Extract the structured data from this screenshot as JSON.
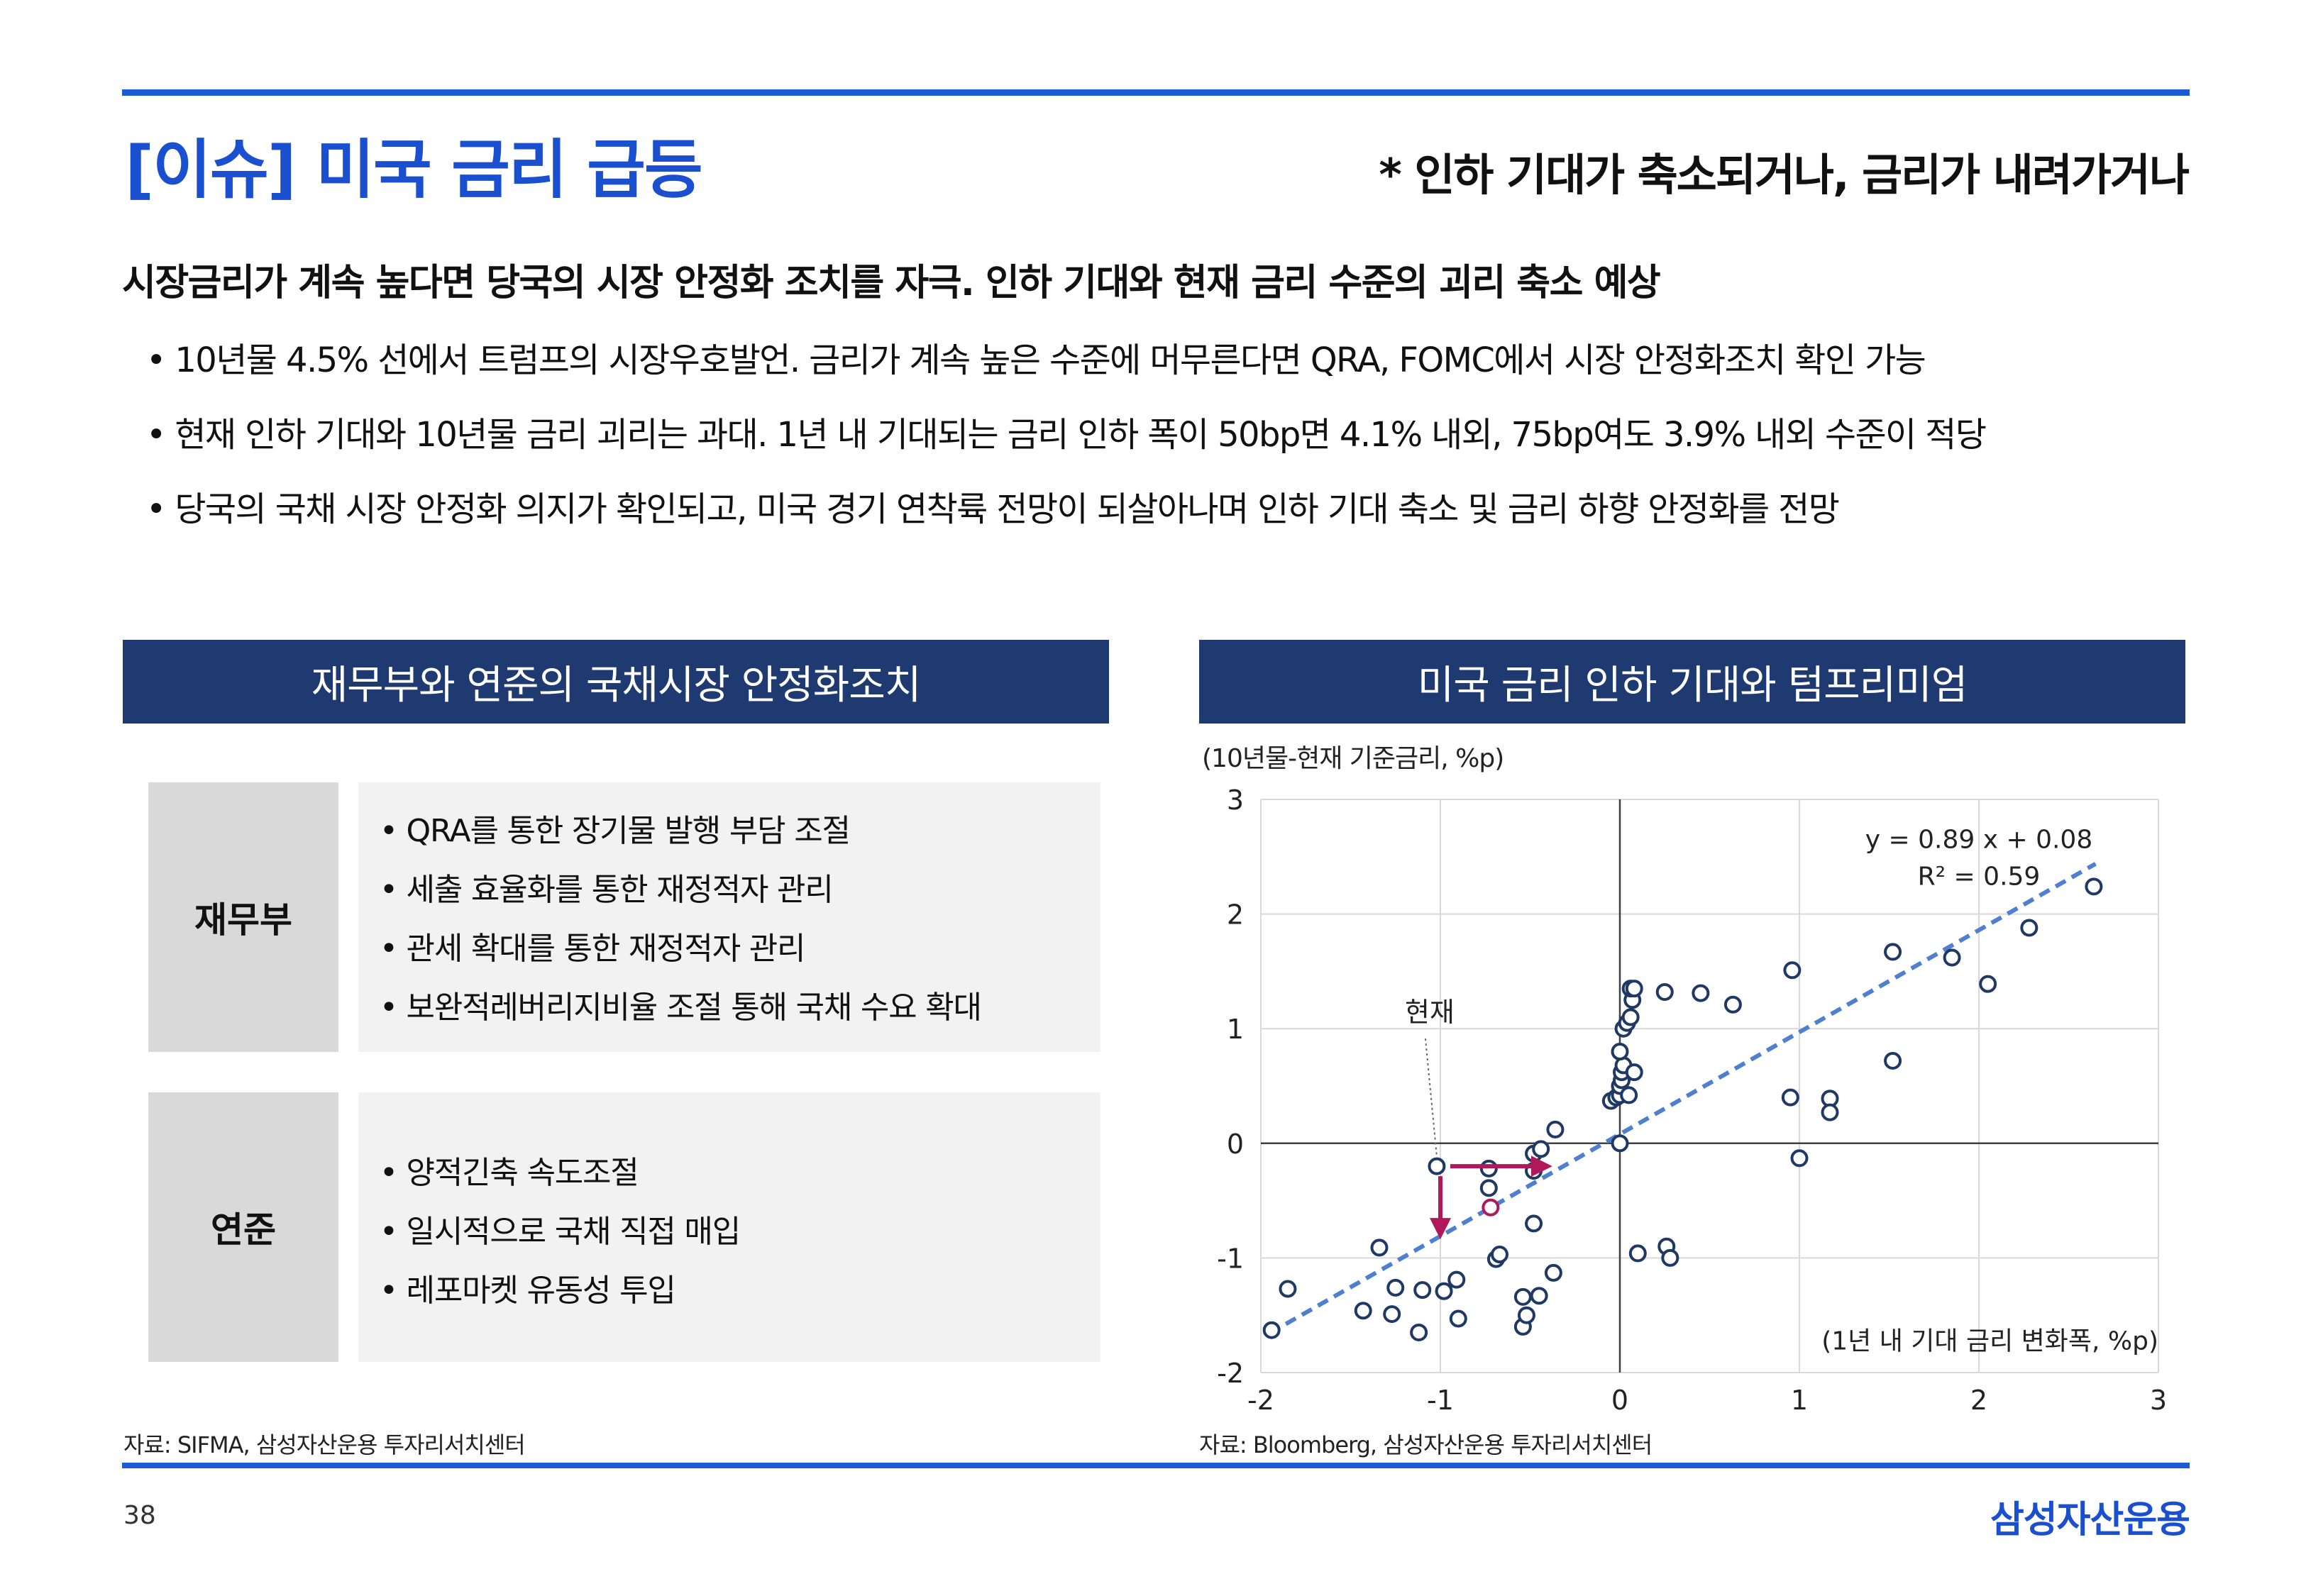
{
  "header": {
    "title": "[이슈] 미국 금리 급등",
    "subtitle": "* 인하 기대가 축소되거나, 금리가 내려가거나"
  },
  "headline": "시장금리가 계속 높다면 당국의 시장 안정화 조치를 자극. 인하 기대와 현재 금리 수준의 괴리 축소 예상",
  "bullets": [
    "• 10년물 4.5% 선에서 트럼프의 시장우호발언. 금리가 계속 높은 수준에 머무른다면 QRA, FOMC에서 시장 안정화조치 확인 가능",
    "• 현재 인하 기대와 10년물 금리 괴리는 과대. 1년 내 기대되는 금리 인하 폭이 50bp면 4.1% 내외, 75bp여도 3.9% 내외 수준이 적당",
    "• 당국의 국채 시장 안정화 의지가 확인되고, 미국 경기 연착륙 전망이 되살아나며 인하 기대 축소 및 금리 하향 안정화를 전망"
  ],
  "left_panel": {
    "title": "재무부와 연준의 국채시장 안정화조치",
    "rows": [
      {
        "label": "재무부",
        "items": [
          "• QRA를 통한 장기물 발행 부담 조절",
          "• 세출 효율화를 통한 재정적자 관리",
          "• 관세 확대를 통한 재정적자 관리",
          "• 보완적레버리지비율 조절 통해 국채 수요 확대"
        ]
      },
      {
        "label": "연준",
        "items": [
          "• 양적긴축 속도조절",
          "• 일시적으로 국채 직접 매입",
          "• 레포마켓 유동성 투입"
        ]
      }
    ],
    "source": "자료: SIFMA, 삼성자산운용 투자리서치센터"
  },
  "right_panel": {
    "title": "미국 금리 인하 기대와 텀프리미엄",
    "source": "자료: Bloomberg, 삼성자산운용 투자리서치센터"
  },
  "chart_data": {
    "type": "scatter",
    "ylabel": "(10년물-현재 기준금리, %p)",
    "xlabel": "(1년 내 기대 금리 변화폭, %p)",
    "xlim": [
      -2,
      3
    ],
    "ylim": [
      -2,
      3
    ],
    "x_ticks": [
      "-2",
      "-1",
      "0",
      "1",
      "2",
      "3"
    ],
    "y_ticks": [
      "3",
      "2",
      "1",
      "0",
      "-1",
      "-2"
    ],
    "grid": true,
    "equation": "y = 0.89 x + 0.08",
    "r_squared": "R² = 0.59",
    "trendline": {
      "slope": 0.89,
      "intercept": 0.08,
      "x_range": [
        -1.95,
        2.65
      ]
    },
    "annotation": {
      "label": "현재",
      "x": -1.02,
      "y": -0.2
    },
    "arrows": [
      {
        "from": [
          -1.0,
          -0.2
        ],
        "to": [
          -0.4,
          -0.2
        ]
      },
      {
        "from": [
          -1.0,
          -0.2
        ],
        "to": [
          -1.0,
          -0.8
        ]
      }
    ],
    "highlight_point": {
      "x": -0.72,
      "y": -0.56
    },
    "points": [
      {
        "x": -1.94,
        "y": -1.63
      },
      {
        "x": -1.85,
        "y": -1.27
      },
      {
        "x": -1.43,
        "y": -1.46
      },
      {
        "x": -1.34,
        "y": -0.91
      },
      {
        "x": -1.27,
        "y": -1.49
      },
      {
        "x": -1.25,
        "y": -1.26
      },
      {
        "x": -1.12,
        "y": -1.65
      },
      {
        "x": -1.1,
        "y": -1.28
      },
      {
        "x": -0.98,
        "y": -1.29
      },
      {
        "x": -0.91,
        "y": -1.19
      },
      {
        "x": -0.9,
        "y": -1.53
      },
      {
        "x": -1.02,
        "y": -0.2
      },
      {
        "x": -0.73,
        "y": -0.22
      },
      {
        "x": -0.73,
        "y": -0.39
      },
      {
        "x": -0.69,
        "y": -1.01
      },
      {
        "x": -0.67,
        "y": -0.97
      },
      {
        "x": -0.54,
        "y": -1.34
      },
      {
        "x": -0.54,
        "y": -1.6
      },
      {
        "x": -0.52,
        "y": -1.5
      },
      {
        "x": -0.48,
        "y": -0.24
      },
      {
        "x": -0.48,
        "y": -0.09
      },
      {
        "x": -0.48,
        "y": -0.7
      },
      {
        "x": -0.45,
        "y": -1.33
      },
      {
        "x": -0.44,
        "y": -0.05
      },
      {
        "x": -0.37,
        "y": -1.13
      },
      {
        "x": -0.36,
        "y": 0.12
      },
      {
        "x": -0.05,
        "y": 0.37
      },
      {
        "x": -0.02,
        "y": 0.4
      },
      {
        "x": 0.0,
        "y": 0.42
      },
      {
        "x": 0.0,
        "y": 0.5
      },
      {
        "x": 0.01,
        "y": 0.55
      },
      {
        "x": 0.01,
        "y": 0.62
      },
      {
        "x": 0.02,
        "y": 0.68
      },
      {
        "x": 0.0,
        "y": 0.8
      },
      {
        "x": 0.05,
        "y": 0.42
      },
      {
        "x": 0.08,
        "y": 0.62
      },
      {
        "x": 0.02,
        "y": 1.0
      },
      {
        "x": 0.04,
        "y": 1.05
      },
      {
        "x": 0.06,
        "y": 1.1
      },
      {
        "x": 0.07,
        "y": 1.25
      },
      {
        "x": 0.06,
        "y": 1.35
      },
      {
        "x": 0.08,
        "y": 1.35
      },
      {
        "x": 0.0,
        "y": 0.0
      },
      {
        "x": 0.1,
        "y": -0.96
      },
      {
        "x": 0.26,
        "y": -0.9
      },
      {
        "x": 0.28,
        "y": -1.0
      },
      {
        "x": 0.25,
        "y": 1.32
      },
      {
        "x": 0.45,
        "y": 1.31
      },
      {
        "x": 0.63,
        "y": 1.21
      },
      {
        "x": 0.96,
        "y": 1.51
      },
      {
        "x": 0.95,
        "y": 0.4
      },
      {
        "x": 1.0,
        "y": -0.13
      },
      {
        "x": 1.17,
        "y": 0.39
      },
      {
        "x": 1.17,
        "y": 0.27
      },
      {
        "x": 1.52,
        "y": 1.67
      },
      {
        "x": 1.52,
        "y": 0.72
      },
      {
        "x": 1.85,
        "y": 1.62
      },
      {
        "x": 2.05,
        "y": 1.39
      },
      {
        "x": 2.28,
        "y": 1.88
      },
      {
        "x": 2.64,
        "y": 2.24
      }
    ],
    "colors": {
      "point": "#1f3864",
      "trend": "#4f7fcf",
      "arrow": "#b0185a",
      "grid": "#d9d9d9",
      "axis": "#404040"
    }
  },
  "footer": {
    "page_number": "38",
    "brand": "삼성자산운용"
  }
}
